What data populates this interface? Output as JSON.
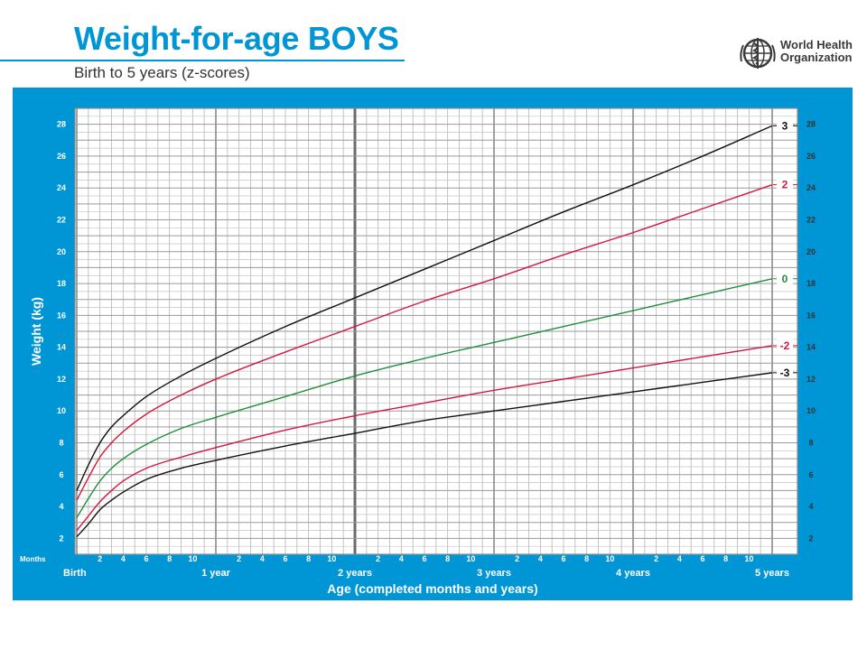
{
  "header": {
    "title": "Weight-for-age BOYS",
    "subtitle": "Birth to 5 years (z-scores)",
    "org_line1": "World Health",
    "org_line2": "Organization"
  },
  "colors": {
    "brand_blue": "#0096d6",
    "black_curve": "#111111",
    "red_curve": "#d4173c",
    "green_curve": "#1f8f3a"
  },
  "chart_data": {
    "type": "line",
    "ylabel": "Weight (kg)",
    "xlabel": "Age (completed months and years)",
    "months_label": "Months",
    "x_unit": "months",
    "xlim": [
      0,
      60
    ],
    "ylim": [
      1,
      29
    ],
    "yticks": [
      2,
      4,
      6,
      8,
      10,
      12,
      14,
      16,
      18,
      20,
      22,
      24,
      26,
      28
    ],
    "year_labels": [
      {
        "month": 0,
        "label": "Birth"
      },
      {
        "month": 12,
        "label": "1 year"
      },
      {
        "month": 24,
        "label": "2 years"
      },
      {
        "month": 36,
        "label": "3 years"
      },
      {
        "month": 48,
        "label": "4 years"
      },
      {
        "month": 60,
        "label": "5 years"
      }
    ],
    "month_tick_labels": [
      "2",
      "4",
      "6",
      "8",
      "10"
    ],
    "grid": true,
    "series": [
      {
        "name": "3",
        "color": "#111111",
        "x": [
          0,
          1,
          2,
          3,
          4,
          6,
          9,
          12,
          18,
          24,
          30,
          36,
          42,
          48,
          54,
          60
        ],
        "y": [
          5.0,
          6.6,
          8.0,
          9.0,
          9.7,
          10.9,
          12.2,
          13.3,
          15.3,
          17.1,
          18.9,
          20.7,
          22.5,
          24.2,
          26.0,
          27.9
        ]
      },
      {
        "name": "2",
        "color": "#d4173c",
        "x": [
          0,
          1,
          2,
          3,
          4,
          6,
          9,
          12,
          18,
          24,
          30,
          36,
          42,
          48,
          54,
          60
        ],
        "y": [
          4.4,
          5.8,
          7.1,
          8.0,
          8.7,
          9.8,
          11.0,
          12.0,
          13.7,
          15.3,
          16.9,
          18.3,
          19.8,
          21.2,
          22.7,
          24.2
        ]
      },
      {
        "name": "0",
        "color": "#1f8f3a",
        "x": [
          0,
          1,
          2,
          3,
          4,
          6,
          9,
          12,
          18,
          24,
          30,
          36,
          42,
          48,
          54,
          60
        ],
        "y": [
          3.3,
          4.5,
          5.6,
          6.4,
          7.0,
          7.9,
          8.9,
          9.6,
          10.9,
          12.2,
          13.3,
          14.3,
          15.3,
          16.3,
          17.3,
          18.3
        ]
      },
      {
        "name": "-2",
        "color": "#d4173c",
        "x": [
          0,
          1,
          2,
          3,
          4,
          6,
          9,
          12,
          18,
          24,
          30,
          36,
          42,
          48,
          54,
          60
        ],
        "y": [
          2.5,
          3.4,
          4.3,
          5.0,
          5.6,
          6.4,
          7.1,
          7.7,
          8.8,
          9.7,
          10.5,
          11.3,
          12.0,
          12.7,
          13.4,
          14.1
        ]
      },
      {
        "name": "-3",
        "color": "#111111",
        "x": [
          0,
          1,
          2,
          3,
          4,
          6,
          9,
          12,
          18,
          24,
          30,
          36,
          42,
          48,
          54,
          60
        ],
        "y": [
          2.1,
          2.9,
          3.8,
          4.4,
          4.9,
          5.7,
          6.4,
          6.9,
          7.8,
          8.6,
          9.4,
          10.0,
          10.6,
          11.2,
          11.8,
          12.4
        ]
      }
    ]
  }
}
